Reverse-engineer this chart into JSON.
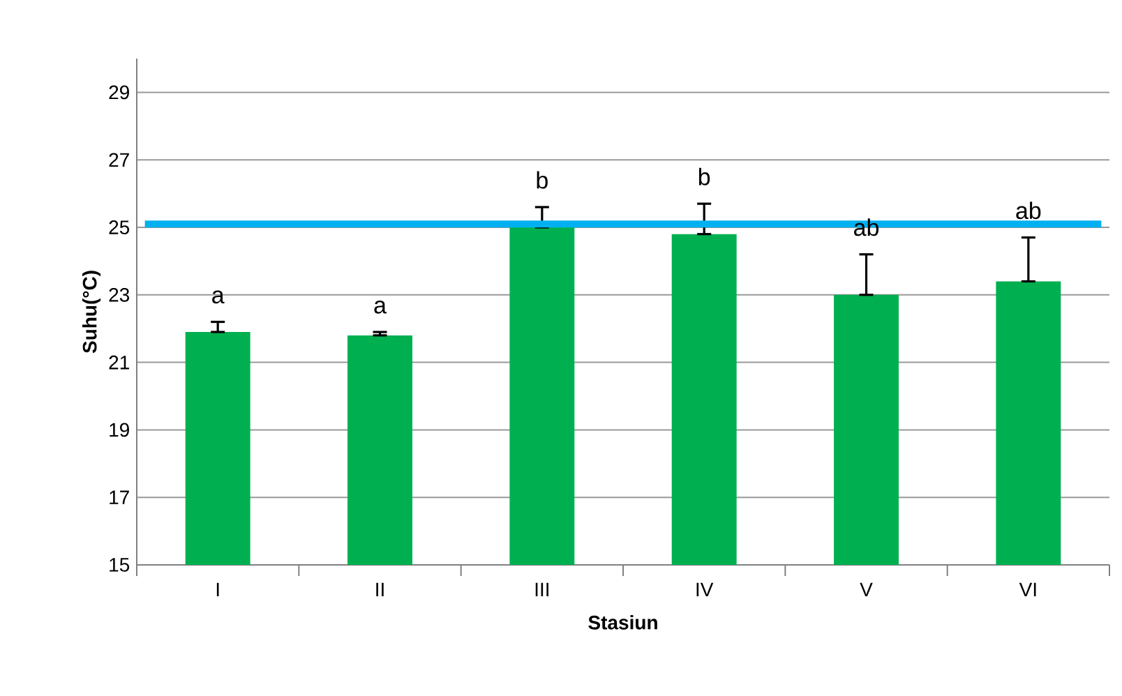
{
  "chart_data": {
    "type": "bar",
    "xlabel": "Stasiun",
    "ylabel": "Suhu(°C)",
    "categories": [
      "I",
      "II",
      "III",
      "IV",
      "V",
      "VI"
    ],
    "values": [
      21.9,
      21.8,
      25.0,
      24.8,
      23.0,
      23.4
    ],
    "errors": [
      [
        21.9,
        22.2
      ],
      [
        21.8,
        21.9
      ],
      [
        25.0,
        25.6
      ],
      [
        24.8,
        25.7
      ],
      [
        23.0,
        24.2
      ],
      [
        23.4,
        24.7
      ]
    ],
    "color": "#00b050",
    "ylim": [
      15,
      30
    ],
    "yticks": [
      15,
      17,
      19,
      21,
      23,
      25,
      27,
      29
    ],
    "grid": "y",
    "ref_lines": [
      {
        "axis": "y",
        "value": 25.1,
        "color": "#00b0f0"
      }
    ],
    "annotations": [
      "a",
      "a",
      "b",
      "b",
      "ab",
      "ab"
    ]
  }
}
